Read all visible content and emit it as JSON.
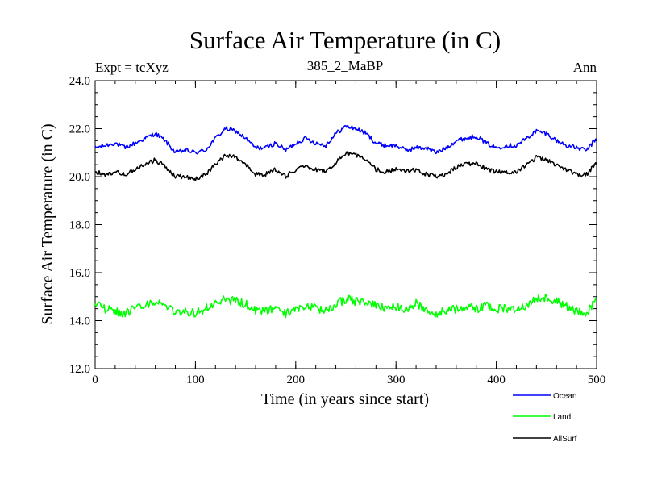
{
  "chart_data": {
    "type": "line",
    "title": "Surface Air Temperature (in C)",
    "subtitle": "385_2_MaBP",
    "left_annotation": "Expt = tcXyz",
    "right_annotation": "Ann",
    "xlabel": "Time (in years since start)",
    "ylabel": "Surface Air Temperature (in C)",
    "xlim": [
      0,
      500
    ],
    "ylim": [
      12.0,
      24.0
    ],
    "x_ticks": [
      0,
      100,
      200,
      300,
      400,
      500
    ],
    "x_tick_labels": [
      "0",
      "100",
      "200",
      "300",
      "400",
      "500"
    ],
    "y_ticks": [
      12,
      14,
      16,
      18,
      20,
      22,
      24
    ],
    "y_tick_labels": [
      "12.0",
      "14.0",
      "16.0",
      "18.0",
      "20.0",
      "22.0",
      "24.0"
    ],
    "grid": false,
    "legend_position": "bottom-right",
    "series": [
      {
        "name": "Ocean",
        "color": "#0000ff",
        "x": [
          0,
          10,
          20,
          30,
          40,
          50,
          60,
          70,
          80,
          90,
          100,
          110,
          120,
          130,
          140,
          150,
          160,
          170,
          180,
          190,
          200,
          210,
          220,
          230,
          240,
          250,
          260,
          270,
          280,
          290,
          300,
          310,
          320,
          330,
          340,
          350,
          360,
          370,
          380,
          390,
          400,
          410,
          420,
          430,
          440,
          450,
          460,
          470,
          480,
          490,
          500
        ],
        "y": [
          21.2,
          21.3,
          21.4,
          21.2,
          21.4,
          21.6,
          21.8,
          21.5,
          21.0,
          21.1,
          21.0,
          21.1,
          21.6,
          22.0,
          21.9,
          21.6,
          21.2,
          21.2,
          21.4,
          21.1,
          21.4,
          21.6,
          21.4,
          21.3,
          21.8,
          22.1,
          22.0,
          21.8,
          21.4,
          21.3,
          21.3,
          21.1,
          21.2,
          21.2,
          21.0,
          21.2,
          21.5,
          21.6,
          21.7,
          21.4,
          21.2,
          21.3,
          21.3,
          21.6,
          21.9,
          21.8,
          21.5,
          21.3,
          21.2,
          21.1,
          21.6
        ]
      },
      {
        "name": "Land",
        "color": "#00ff00",
        "x": [
          0,
          10,
          20,
          30,
          40,
          50,
          60,
          70,
          80,
          90,
          100,
          110,
          120,
          130,
          140,
          150,
          160,
          170,
          180,
          190,
          200,
          210,
          220,
          230,
          240,
          250,
          260,
          270,
          280,
          290,
          300,
          310,
          320,
          330,
          340,
          350,
          360,
          370,
          380,
          390,
          400,
          410,
          420,
          430,
          440,
          450,
          460,
          470,
          480,
          490,
          500
        ],
        "y": [
          14.8,
          14.5,
          14.4,
          14.3,
          14.5,
          14.6,
          14.8,
          14.6,
          14.3,
          14.4,
          14.3,
          14.5,
          14.7,
          14.9,
          14.8,
          14.7,
          14.4,
          14.4,
          14.5,
          14.3,
          14.5,
          14.6,
          14.5,
          14.4,
          14.7,
          14.9,
          14.8,
          14.8,
          14.6,
          14.5,
          14.6,
          14.5,
          14.7,
          14.5,
          14.3,
          14.4,
          14.5,
          14.6,
          14.5,
          14.6,
          14.5,
          14.5,
          14.5,
          14.6,
          14.9,
          15.0,
          14.8,
          14.6,
          14.4,
          14.3,
          14.9
        ]
      },
      {
        "name": "AllSurf",
        "color": "#000000",
        "x": [
          0,
          10,
          20,
          30,
          40,
          50,
          60,
          70,
          80,
          90,
          100,
          110,
          120,
          130,
          140,
          150,
          160,
          170,
          180,
          190,
          200,
          210,
          220,
          230,
          240,
          250,
          260,
          270,
          280,
          290,
          300,
          310,
          320,
          330,
          340,
          350,
          360,
          370,
          380,
          390,
          400,
          410,
          420,
          430,
          440,
          450,
          460,
          470,
          480,
          490,
          500
        ],
        "y": [
          20.2,
          20.1,
          20.2,
          20.1,
          20.3,
          20.5,
          20.7,
          20.4,
          20.0,
          20.0,
          19.9,
          20.1,
          20.5,
          20.9,
          20.8,
          20.5,
          20.1,
          20.1,
          20.3,
          20.0,
          20.3,
          20.4,
          20.3,
          20.2,
          20.6,
          21.0,
          20.9,
          20.7,
          20.3,
          20.2,
          20.3,
          20.2,
          20.3,
          20.1,
          20.0,
          20.1,
          20.4,
          20.5,
          20.6,
          20.3,
          20.2,
          20.2,
          20.2,
          20.5,
          20.8,
          20.7,
          20.5,
          20.3,
          20.1,
          20.1,
          20.6
        ]
      }
    ]
  }
}
